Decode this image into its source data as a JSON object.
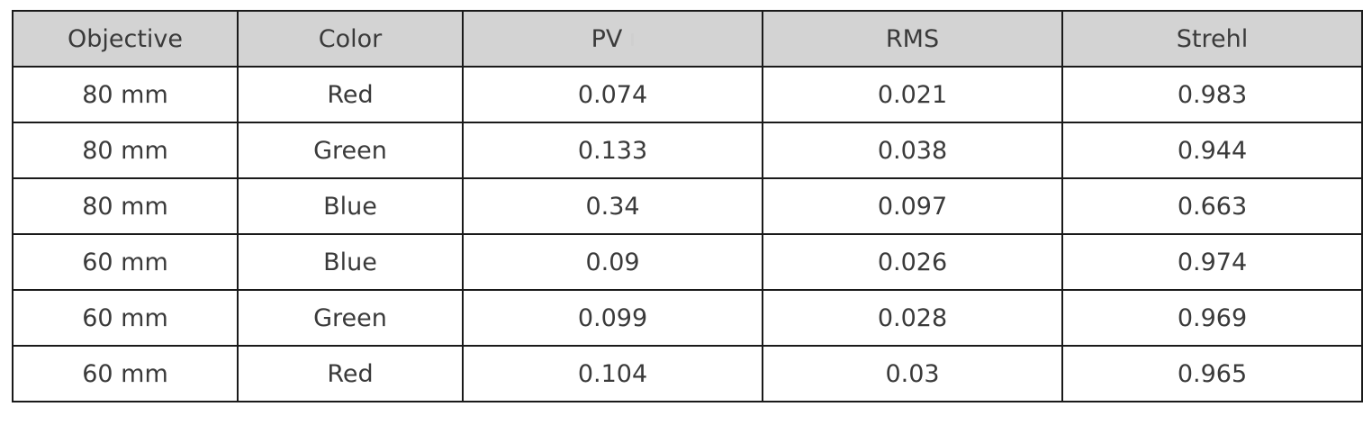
{
  "table": {
    "headers": [
      "Objective",
      "Color",
      "PV",
      "RMS",
      "Strehl"
    ],
    "rows": [
      [
        "80 mm",
        "Red",
        "0.074",
        "0.021",
        "0.983"
      ],
      [
        "80 mm",
        "Green",
        "0.133",
        "0.038",
        "0.944"
      ],
      [
        "80 mm",
        "Blue",
        "0.34",
        "0.097",
        "0.663"
      ],
      [
        "60 mm",
        "Blue",
        "0.09",
        "0.026",
        "0.974"
      ],
      [
        "60 mm",
        "Green",
        "0.099",
        "0.028",
        "0.969"
      ],
      [
        "60 mm",
        "Red",
        "0.104",
        "0.03",
        "0.965"
      ]
    ]
  }
}
